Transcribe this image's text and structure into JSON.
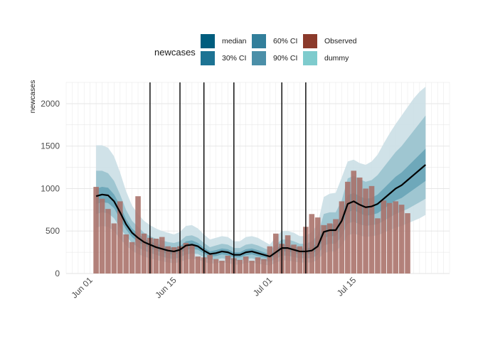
{
  "chart_data": {
    "type": "bar",
    "title": "",
    "xlabel": "",
    "ylabel": "newcases",
    "ylim": [
      0,
      2250
    ],
    "yticks": [
      0,
      500,
      1000,
      1500,
      2000
    ],
    "xlim": [
      "2020-05-28",
      "2020-07-31"
    ],
    "xticks": [
      {
        "date": "2020-06-01",
        "label": "Jun 01"
      },
      {
        "date": "2020-06-15",
        "label": "Jun 15"
      },
      {
        "date": "2020-07-01",
        "label": "Jul 01"
      },
      {
        "date": "2020-07-15",
        "label": "Jul 15"
      }
    ],
    "grid": true,
    "legend": {
      "title": "newcases",
      "position": "top",
      "entries": [
        {
          "label": "median",
          "color": "#005d7e"
        },
        {
          "label": "30% CI",
          "color": "#1d7393"
        },
        {
          "label": "60% CI",
          "color": "#327f9b"
        },
        {
          "label": "90% CI",
          "color": "#4b8fa8"
        },
        {
          "label": "Observed",
          "color": "#8b3a2b"
        },
        {
          "label": "dummy",
          "color": "#7ecbcd"
        }
      ]
    },
    "colors": {
      "observed": "#a87068",
      "median": "#000000",
      "ci90": "#cbdfe6",
      "ci60": "#8fbcca",
      "ci30": "#5e9db2",
      "vline": "#000000"
    },
    "dates": [
      "2020-06-02",
      "2020-06-03",
      "2020-06-04",
      "2020-06-05",
      "2020-06-06",
      "2020-06-07",
      "2020-06-08",
      "2020-06-09",
      "2020-06-10",
      "2020-06-11",
      "2020-06-12",
      "2020-06-13",
      "2020-06-14",
      "2020-06-15",
      "2020-06-16",
      "2020-06-17",
      "2020-06-18",
      "2020-06-19",
      "2020-06-20",
      "2020-06-21",
      "2020-06-22",
      "2020-06-23",
      "2020-06-24",
      "2020-06-25",
      "2020-06-26",
      "2020-06-27",
      "2020-06-28",
      "2020-06-29",
      "2020-06-30",
      "2020-07-01",
      "2020-07-02",
      "2020-07-03",
      "2020-07-04",
      "2020-07-05",
      "2020-07-06",
      "2020-07-07",
      "2020-07-08",
      "2020-07-09",
      "2020-07-10",
      "2020-07-11",
      "2020-07-12",
      "2020-07-13",
      "2020-07-14",
      "2020-07-15",
      "2020-07-16",
      "2020-07-17",
      "2020-07-18",
      "2020-07-19",
      "2020-07-20",
      "2020-07-21",
      "2020-07-22",
      "2020-07-23",
      "2020-07-24",
      "2020-07-25",
      "2020-07-26",
      "2020-07-27"
    ],
    "observed": [
      1020,
      880,
      760,
      590,
      850,
      460,
      370,
      910,
      470,
      420,
      410,
      430,
      320,
      310,
      320,
      360,
      330,
      200,
      190,
      220,
      170,
      150,
      210,
      180,
      160,
      200,
      150,
      190,
      170,
      320,
      470,
      350,
      450,
      340,
      320,
      550,
      700,
      660,
      570,
      590,
      640,
      850,
      1080,
      1210,
      1130,
      1000,
      1030,
      650,
      860,
      830,
      850,
      810,
      710,
      null,
      null,
      null
    ],
    "median": [
      910,
      930,
      920,
      850,
      720,
      580,
      480,
      420,
      370,
      340,
      310,
      290,
      270,
      260,
      280,
      330,
      340,
      320,
      270,
      230,
      240,
      260,
      250,
      220,
      220,
      250,
      260,
      240,
      220,
      200,
      250,
      300,
      300,
      280,
      260,
      260,
      270,
      320,
      490,
      510,
      510,
      620,
      820,
      850,
      810,
      780,
      790,
      820,
      880,
      940,
      1000,
      1040,
      1100,
      1160,
      1220,
      1280
    ],
    "ci30_lo": [
      820,
      840,
      830,
      770,
      640,
      520,
      430,
      370,
      330,
      300,
      270,
      250,
      230,
      220,
      240,
      280,
      290,
      280,
      235,
      200,
      205,
      225,
      215,
      190,
      190,
      215,
      225,
      205,
      190,
      175,
      215,
      260,
      260,
      240,
      225,
      225,
      230,
      275,
      420,
      440,
      440,
      540,
      720,
      750,
      710,
      680,
      690,
      710,
      760,
      810,
      860,
      890,
      940,
      990,
      1040,
      1090
    ],
    "ci30_hi": [
      1000,
      1020,
      1010,
      930,
      800,
      640,
      530,
      470,
      410,
      380,
      350,
      330,
      310,
      300,
      320,
      380,
      390,
      360,
      305,
      260,
      275,
      295,
      285,
      250,
      250,
      285,
      295,
      275,
      250,
      225,
      285,
      340,
      340,
      320,
      295,
      295,
      310,
      365,
      560,
      580,
      580,
      700,
      920,
      950,
      910,
      880,
      890,
      930,
      1000,
      1070,
      1140,
      1190,
      1260,
      1330,
      1400,
      1470
    ],
    "ci60_lo": [
      700,
      720,
      710,
      650,
      540,
      440,
      360,
      310,
      270,
      245,
      220,
      200,
      180,
      170,
      190,
      225,
      235,
      230,
      190,
      160,
      165,
      180,
      170,
      150,
      150,
      170,
      180,
      160,
      150,
      140,
      170,
      210,
      210,
      195,
      180,
      180,
      180,
      220,
      330,
      350,
      350,
      440,
      590,
      610,
      580,
      560,
      570,
      580,
      620,
      660,
      700,
      730,
      760,
      800,
      840,
      880
    ],
    "ci60_hi": [
      1210,
      1210,
      1180,
      1090,
      930,
      750,
      620,
      550,
      480,
      440,
      410,
      390,
      370,
      360,
      380,
      440,
      450,
      420,
      360,
      310,
      330,
      350,
      340,
      300,
      300,
      340,
      350,
      330,
      300,
      270,
      340,
      400,
      400,
      380,
      350,
      350,
      380,
      450,
      700,
      720,
      720,
      860,
      1120,
      1150,
      1110,
      1080,
      1100,
      1160,
      1250,
      1340,
      1430,
      1500,
      1590,
      1680,
      1770,
      1860
    ],
    "ci90_lo": [
      540,
      560,
      550,
      500,
      410,
      330,
      270,
      230,
      200,
      180,
      160,
      145,
      130,
      120,
      135,
      165,
      170,
      165,
      140,
      115,
      120,
      130,
      125,
      105,
      105,
      125,
      130,
      115,
      105,
      95,
      125,
      155,
      155,
      140,
      130,
      130,
      130,
      160,
      240,
      260,
      260,
      330,
      450,
      470,
      450,
      430,
      440,
      450,
      480,
      510,
      540,
      560,
      590,
      620,
      650,
      690
    ],
    "ci90_hi": [
      1510,
      1510,
      1480,
      1380,
      1190,
      970,
      800,
      700,
      620,
      570,
      530,
      500,
      480,
      460,
      490,
      560,
      570,
      530,
      460,
      400,
      420,
      440,
      430,
      380,
      380,
      430,
      440,
      420,
      380,
      340,
      430,
      500,
      500,
      480,
      440,
      440,
      490,
      580,
      900,
      940,
      950,
      1130,
      1320,
      1340,
      1300,
      1280,
      1320,
      1400,
      1530,
      1650,
      1760,
      1860,
      1960,
      2060,
      2140,
      2200
    ],
    "vlines": [
      "2020-06-11",
      "2020-06-16",
      "2020-06-20",
      "2020-06-25",
      "2020-07-03",
      "2020-07-07"
    ]
  }
}
